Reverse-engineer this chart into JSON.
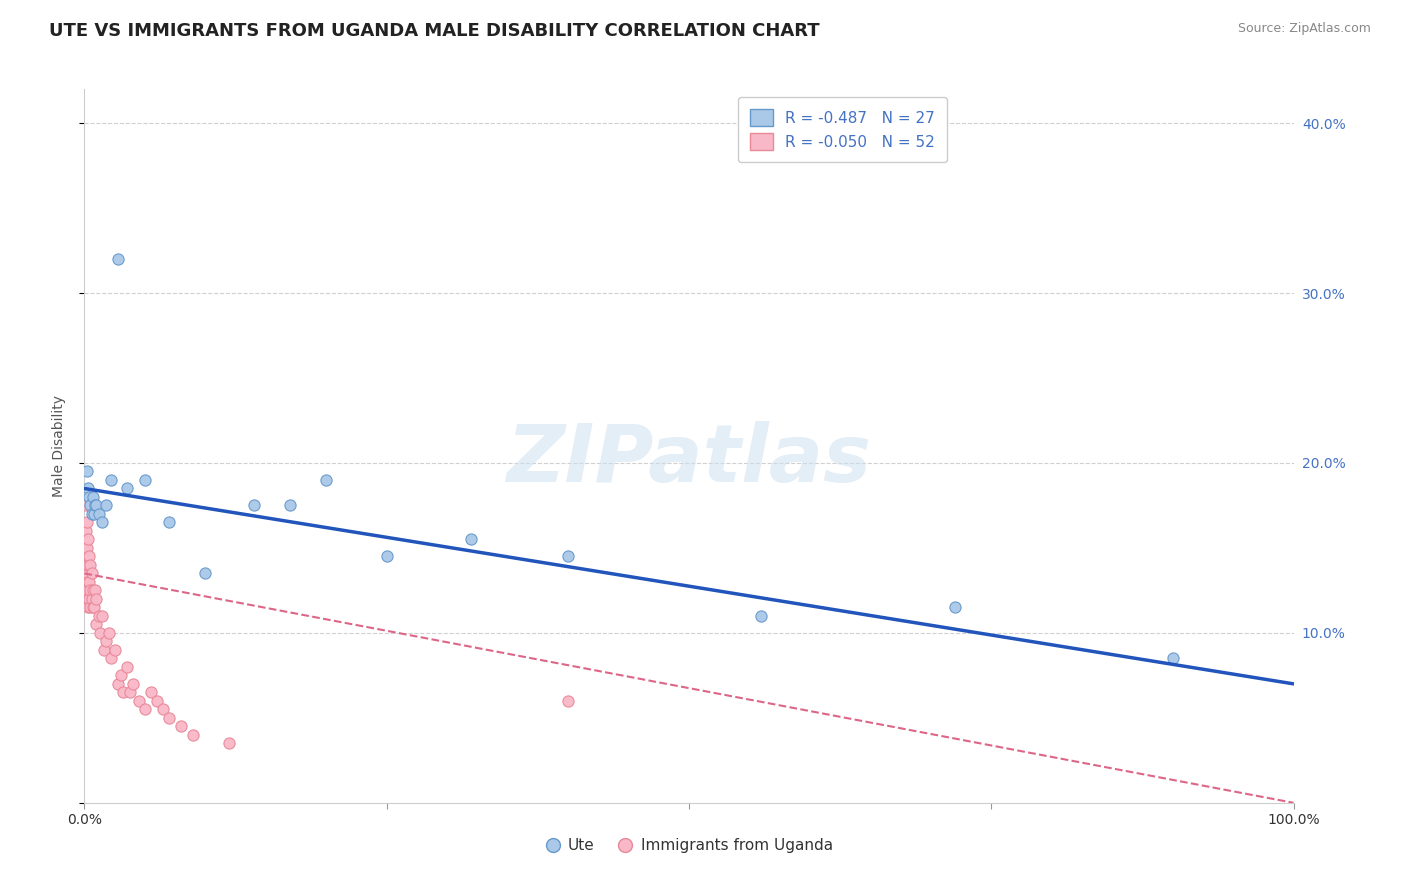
{
  "title": "UTE VS IMMIGRANTS FROM UGANDA MALE DISABILITY CORRELATION CHART",
  "source": "Source: ZipAtlas.com",
  "ylabel": "Male Disability",
  "xlim": [
    0,
    1.0
  ],
  "ylim": [
    0,
    0.42
  ],
  "background_color": "#ffffff",
  "grid_color": "#d0d0d0",
  "watermark_text": "ZIPatlas",
  "ute_R": -0.487,
  "ute_N": 27,
  "uganda_R": -0.05,
  "uganda_N": 52,
  "ute_color": "#aac8e8",
  "ute_edge": "#6699cc",
  "uganda_color": "#f9b8c8",
  "uganda_edge": "#e88898",
  "ute_x": [
    0.002,
    0.003,
    0.004,
    0.005,
    0.006,
    0.007,
    0.008,
    0.009,
    0.01,
    0.012,
    0.015,
    0.018,
    0.022,
    0.028,
    0.035,
    0.05,
    0.07,
    0.1,
    0.14,
    0.17,
    0.2,
    0.25,
    0.32,
    0.4,
    0.56,
    0.72,
    0.9
  ],
  "ute_y": [
    0.195,
    0.185,
    0.18,
    0.175,
    0.17,
    0.18,
    0.17,
    0.175,
    0.175,
    0.17,
    0.165,
    0.175,
    0.19,
    0.32,
    0.185,
    0.19,
    0.165,
    0.135,
    0.175,
    0.175,
    0.19,
    0.145,
    0.155,
    0.145,
    0.11,
    0.115,
    0.085
  ],
  "uganda_x": [
    0.001,
    0.001,
    0.001,
    0.001,
    0.001,
    0.002,
    0.002,
    0.002,
    0.002,
    0.002,
    0.003,
    0.003,
    0.003,
    0.003,
    0.004,
    0.004,
    0.004,
    0.005,
    0.005,
    0.005,
    0.006,
    0.006,
    0.007,
    0.007,
    0.008,
    0.009,
    0.01,
    0.01,
    0.012,
    0.013,
    0.015,
    0.016,
    0.018,
    0.02,
    0.022,
    0.025,
    0.028,
    0.03,
    0.032,
    0.035,
    0.038,
    0.04,
    0.045,
    0.05,
    0.055,
    0.06,
    0.065,
    0.07,
    0.08,
    0.09,
    0.12,
    0.4
  ],
  "uganda_y": [
    0.175,
    0.16,
    0.15,
    0.135,
    0.125,
    0.165,
    0.15,
    0.14,
    0.13,
    0.12,
    0.155,
    0.14,
    0.125,
    0.115,
    0.145,
    0.13,
    0.12,
    0.14,
    0.125,
    0.115,
    0.135,
    0.12,
    0.125,
    0.115,
    0.115,
    0.125,
    0.12,
    0.105,
    0.11,
    0.1,
    0.11,
    0.09,
    0.095,
    0.1,
    0.085,
    0.09,
    0.07,
    0.075,
    0.065,
    0.08,
    0.065,
    0.07,
    0.06,
    0.055,
    0.065,
    0.06,
    0.055,
    0.05,
    0.045,
    0.04,
    0.035,
    0.06
  ],
  "ute_line_x": [
    0.0,
    1.0
  ],
  "ute_line_y": [
    0.185,
    0.07
  ],
  "uganda_line_x": [
    0.0,
    1.0
  ],
  "uganda_line_y": [
    0.135,
    0.0
  ],
  "legend_label1": "Ute",
  "legend_label2": "Immigrants from Uganda"
}
